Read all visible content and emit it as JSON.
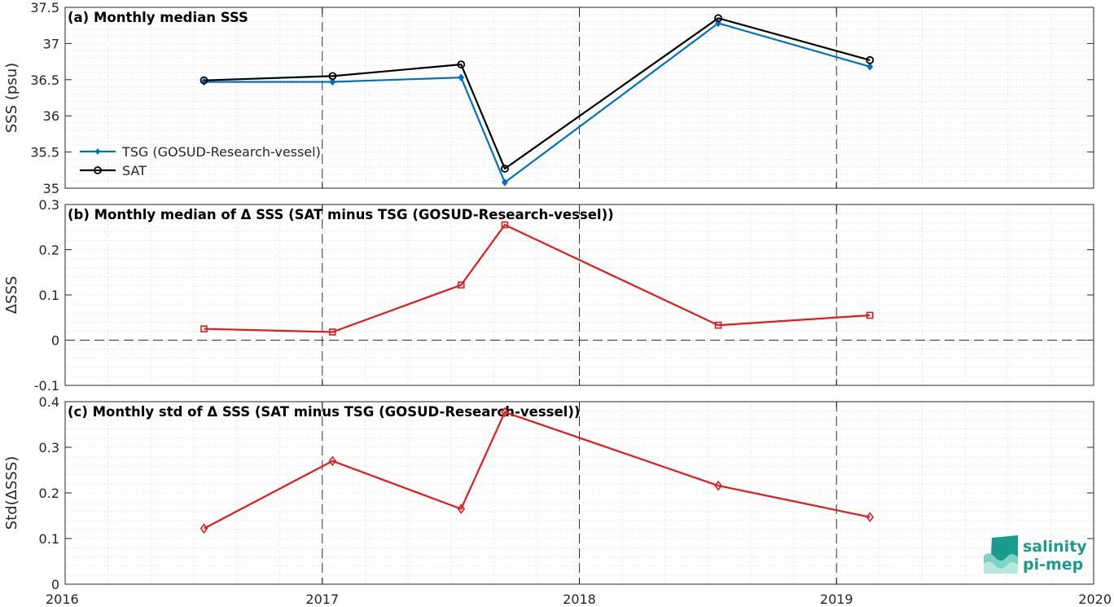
{
  "chart_data": [
    {
      "type": "line",
      "title": "(a) Monthly median SSS",
      "xlabel": "",
      "ylabel": "SSS (psu)",
      "xlim": [
        2016,
        2020
      ],
      "ylim": [
        35,
        37.5
      ],
      "xticks": [
        2016,
        2017,
        2018,
        2019,
        2020
      ],
      "xtick_labels": [
        "2016",
        "2017",
        "2018",
        "2019",
        "2020"
      ],
      "yticks": [
        35,
        35.5,
        36,
        36.5,
        37,
        37.5
      ],
      "ytick_labels": [
        "35",
        "35.5",
        "36",
        "36.5",
        "37",
        "37.5"
      ],
      "grid": "dotted",
      "legend_position": "bottom-left",
      "x": [
        2016.54,
        2017.04,
        2017.54,
        2017.71,
        2018.54,
        2019.13
      ],
      "series": [
        {
          "name": "TSG (GOSUD-Research-vessel)",
          "color": "#0072BD",
          "marker": "diamond-filled",
          "values": [
            36.47,
            36.47,
            36.53,
            35.08,
            37.28,
            36.68
          ]
        },
        {
          "name": "SAT",
          "color": "#000000",
          "marker": "circle-open",
          "values": [
            36.49,
            36.55,
            36.71,
            35.27,
            37.35,
            36.77
          ]
        }
      ]
    },
    {
      "type": "line",
      "title": "(b) Monthly median of Δ SSS (SAT minus TSG (GOSUD-Research-vessel))",
      "xlabel": "",
      "ylabel": "ΔSSS",
      "xlim": [
        2016,
        2020
      ],
      "ylim": [
        -0.1,
        0.3
      ],
      "yticks": [
        -0.1,
        0,
        0.1,
        0.2,
        0.3
      ],
      "ytick_labels": [
        "-0.1",
        "0",
        "0.1",
        "0.2",
        "0.3"
      ],
      "grid": "dotted",
      "reference_line": 0,
      "x": [
        2016.54,
        2017.04,
        2017.54,
        2017.71,
        2018.54,
        2019.13
      ],
      "series": [
        {
          "color": "#e31a1c",
          "marker": "square-open",
          "values": [
            0.025,
            0.018,
            0.122,
            0.255,
            0.033,
            0.055
          ]
        }
      ]
    },
    {
      "type": "line",
      "title": "(c) Monthly std of Δ SSS (SAT minus TSG (GOSUD-Research-vessel))",
      "xlabel": "",
      "ylabel": "Std(ΔSSS)",
      "xlim": [
        2016,
        2020
      ],
      "ylim": [
        0,
        0.4
      ],
      "yticks": [
        0,
        0.1,
        0.2,
        0.3,
        0.4
      ],
      "ytick_labels": [
        "0",
        "0.1",
        "0.2",
        "0.3",
        "0.4"
      ],
      "grid": "dotted",
      "x": [
        2016.54,
        2017.04,
        2017.54,
        2017.71,
        2018.54,
        2019.13
      ],
      "series": [
        {
          "color": "#e31a1c",
          "marker": "diamond-open",
          "values": [
            0.122,
            0.27,
            0.165,
            0.377,
            0.216,
            0.147
          ]
        }
      ]
    }
  ],
  "logo": {
    "line1": "salinity",
    "line2": "pi-mep",
    "color": "#1a9c8c"
  }
}
